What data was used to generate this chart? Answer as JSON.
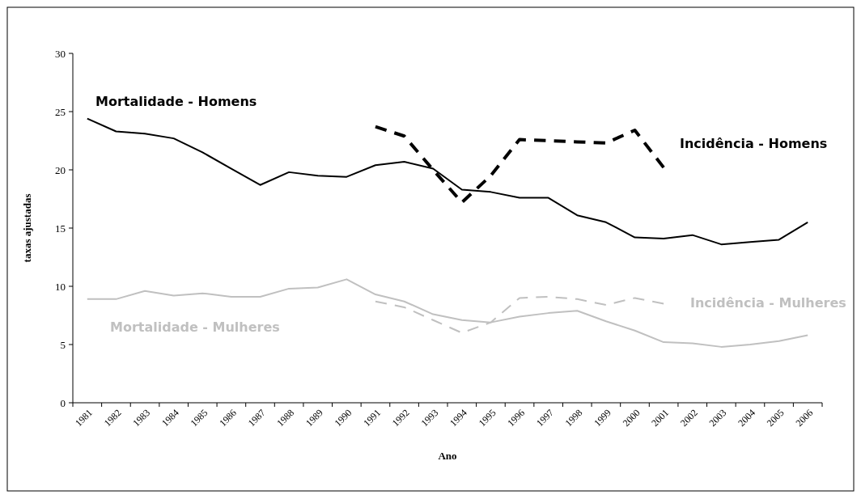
{
  "chart_data": {
    "type": "line",
    "xlabel": "Ano",
    "ylabel": "taxas ajustadas",
    "categories": [
      "1981",
      "1982",
      "1983",
      "1984",
      "1985",
      "1986",
      "1987",
      "1988",
      "1989",
      "1990",
      "1991",
      "1992",
      "1993",
      "1994",
      "1995",
      "1996",
      "1997",
      "1998",
      "1999",
      "2000",
      "2001",
      "2002",
      "2003",
      "2004",
      "2005",
      "2006"
    ],
    "ylim": [
      0,
      30
    ],
    "yticks": [
      0,
      5,
      10,
      15,
      20,
      25,
      30
    ],
    "grid": false,
    "series": [
      {
        "name": "Mortalidade - Homens",
        "color": "#000000",
        "line_style": "solid",
        "values": [
          24.4,
          23.3,
          23.1,
          22.7,
          21.5,
          20.1,
          18.7,
          19.8,
          19.5,
          19.4,
          20.4,
          20.7,
          20.1,
          18.3,
          18.1,
          17.6,
          17.6,
          16.1,
          15.5,
          14.2,
          14.1,
          14.4,
          13.6,
          13.8,
          14.0,
          15.5
        ]
      },
      {
        "name": "Incidência - Homens",
        "color": "#000000",
        "line_style": "dashed",
        "values": [
          null,
          null,
          null,
          null,
          null,
          null,
          null,
          null,
          null,
          null,
          23.7,
          22.9,
          20.0,
          17.2,
          19.5,
          22.6,
          22.5,
          22.4,
          22.3,
          23.4,
          20.2,
          null,
          null,
          null,
          null,
          null
        ]
      },
      {
        "name": "Mortalidade - Mulheres",
        "color": "#c0c0c0",
        "line_style": "solid",
        "values": [
          8.9,
          8.9,
          9.6,
          9.2,
          9.4,
          9.1,
          9.1,
          9.8,
          9.9,
          10.6,
          9.3,
          8.7,
          7.6,
          7.1,
          6.9,
          7.4,
          7.7,
          7.9,
          7.0,
          6.2,
          5.2,
          5.1,
          4.8,
          5.0,
          5.3,
          5.8
        ]
      },
      {
        "name": "Incidência - Mulheres",
        "color": "#c0c0c0",
        "line_style": "dashed",
        "values": [
          null,
          null,
          null,
          null,
          null,
          null,
          null,
          null,
          null,
          null,
          8.7,
          8.2,
          7.1,
          6.0,
          6.9,
          9.0,
          9.1,
          8.9,
          8.4,
          9.0,
          8.5,
          null,
          null,
          null,
          null,
          null
        ]
      }
    ]
  }
}
